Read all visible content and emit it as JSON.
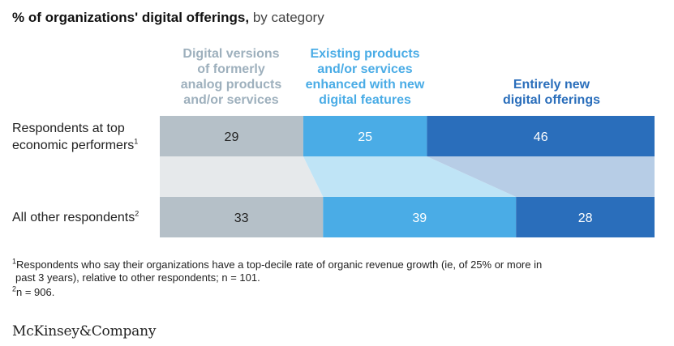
{
  "title": {
    "bold": "% of organizations' digital offerings,",
    "light": " by category"
  },
  "columns": [
    {
      "lines": [
        "Digital versions",
        "of formerly",
        "analog products",
        "and/or services"
      ],
      "color": "#9EB0BD"
    },
    {
      "lines": [
        "Existing products",
        "and/or services",
        "enhanced with new",
        "digital features"
      ],
      "color": "#4AACE6"
    },
    {
      "lines": [
        "Entirely new",
        "digital offerings"
      ],
      "color": "#2A6EBB"
    }
  ],
  "rows": [
    {
      "label_line1": "Respondents at top",
      "label_line2": "economic performers",
      "sup": "1"
    },
    {
      "label_line1": "All other respondents",
      "sup": "2"
    }
  ],
  "chart_data": {
    "type": "bar",
    "stacked": true,
    "orientation": "horizontal",
    "unit": "%",
    "categories": [
      "Respondents at top economic performers",
      "All other respondents"
    ],
    "series": [
      {
        "name": "Digital versions of formerly analog products and/or services",
        "values": [
          29,
          33
        ],
        "color": "#B5C0C8",
        "label_color": "#222222"
      },
      {
        "name": "Existing products and/or services enhanced with new digital features",
        "values": [
          25,
          39
        ],
        "color": "#4AACE6",
        "label_color": "#ffffff"
      },
      {
        "name": "Entirely new digital offerings",
        "values": [
          46,
          28
        ],
        "color": "#2A6EBB",
        "label_color": "#ffffff"
      }
    ],
    "connector_colors": [
      "#E6E9EB",
      "#BFE4F6",
      "#B7CDE6"
    ],
    "xlim": [
      0,
      100
    ]
  },
  "footnotes": [
    "Respondents who say their organizations have a top-decile rate of organic revenue growth (ie, of 25% or more in",
    "past 3 years), relative to other respondents; n = 101.",
    "n = 906."
  ],
  "footnote_marks": [
    "1",
    "2"
  ],
  "source": "McKinsey&Company"
}
